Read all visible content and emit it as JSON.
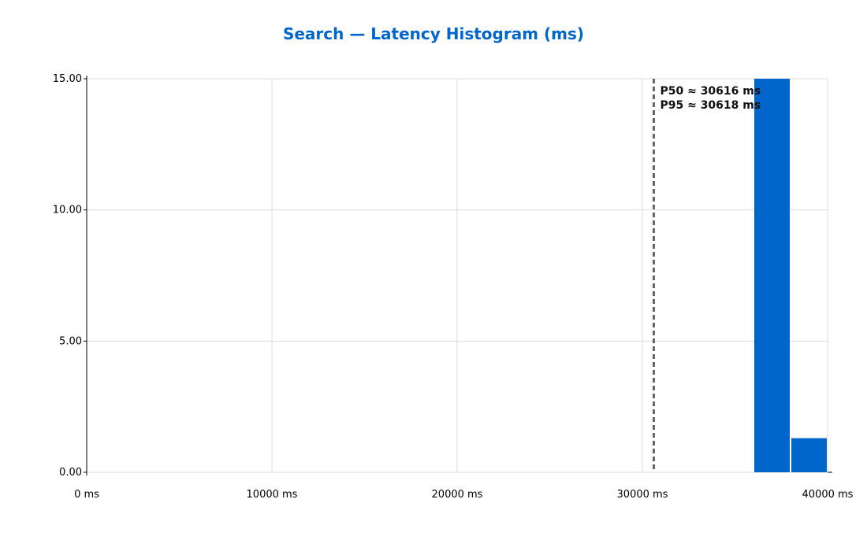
{
  "colors": {
    "accent": "#0066CC",
    "bar": "#0066CC",
    "grid": "#dddddd",
    "marker_line": "#666666",
    "annotation_text": "#111111"
  },
  "chart_data": {
    "type": "bar",
    "title": "Search — Latency Histogram (ms)",
    "xlabel": "",
    "ylabel": "",
    "x_tick_values": [
      0,
      10000,
      20000,
      30000,
      40000
    ],
    "x_tick_labels": [
      "0 ms",
      "10000 ms",
      "20000 ms",
      "30000 ms",
      "40000 ms"
    ],
    "y_tick_values": [
      0,
      5,
      10,
      15
    ],
    "y_tick_labels": [
      "0.00",
      "5.00",
      "10.00",
      "15.00"
    ],
    "xlim": [
      0,
      40000
    ],
    "ylim": [
      0,
      15
    ],
    "grid": true,
    "bins": [
      {
        "start": 36000,
        "end": 38000,
        "count": 15
      },
      {
        "start": 38000,
        "end": 40000,
        "count": 1.3
      }
    ],
    "percentile_line_x": 30616,
    "annotations": [
      "P50 ≈ 30616 ms",
      "P95 ≈ 30618 ms"
    ]
  }
}
